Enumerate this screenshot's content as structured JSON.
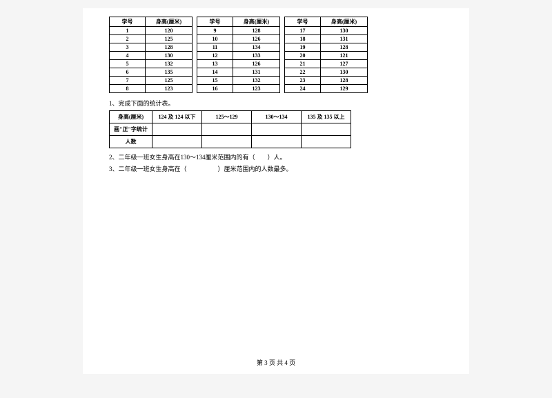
{
  "data_tables": {
    "headers": [
      "学号",
      "身高(厘米)"
    ],
    "groups": [
      [
        {
          "id": "1",
          "h": "120"
        },
        {
          "id": "2",
          "h": "125"
        },
        {
          "id": "3",
          "h": "128"
        },
        {
          "id": "4",
          "h": "130"
        },
        {
          "id": "5",
          "h": "132"
        },
        {
          "id": "6",
          "h": "135"
        },
        {
          "id": "7",
          "h": "125"
        },
        {
          "id": "8",
          "h": "123"
        }
      ],
      [
        {
          "id": "9",
          "h": "128"
        },
        {
          "id": "10",
          "h": "126"
        },
        {
          "id": "11",
          "h": "134"
        },
        {
          "id": "12",
          "h": "133"
        },
        {
          "id": "13",
          "h": "126"
        },
        {
          "id": "14",
          "h": "131"
        },
        {
          "id": "15",
          "h": "132"
        },
        {
          "id": "16",
          "h": "123"
        }
      ],
      [
        {
          "id": "17",
          "h": "130"
        },
        {
          "id": "18",
          "h": "131"
        },
        {
          "id": "19",
          "h": "128"
        },
        {
          "id": "20",
          "h": "121"
        },
        {
          "id": "21",
          "h": "127"
        },
        {
          "id": "22",
          "h": "130"
        },
        {
          "id": "23",
          "h": "128"
        },
        {
          "id": "24",
          "h": "129"
        }
      ]
    ]
  },
  "q1": "1、完成下面的统计表。",
  "summary_table": {
    "row_headers": [
      "身高(厘米)",
      "画\"正\"字统计",
      "人数"
    ],
    "col_headers": [
      "124 及 124 以下",
      "125～129",
      "130～134",
      "135 及 135 以上"
    ]
  },
  "q2": "2、二年级一班女生身高在130～134厘米范围内的有（　　）人。",
  "q3": "3、二年级一班女生身高在（　　　　　）厘米范围内的人数最多。",
  "footer": "第 3 页 共 4 页"
}
